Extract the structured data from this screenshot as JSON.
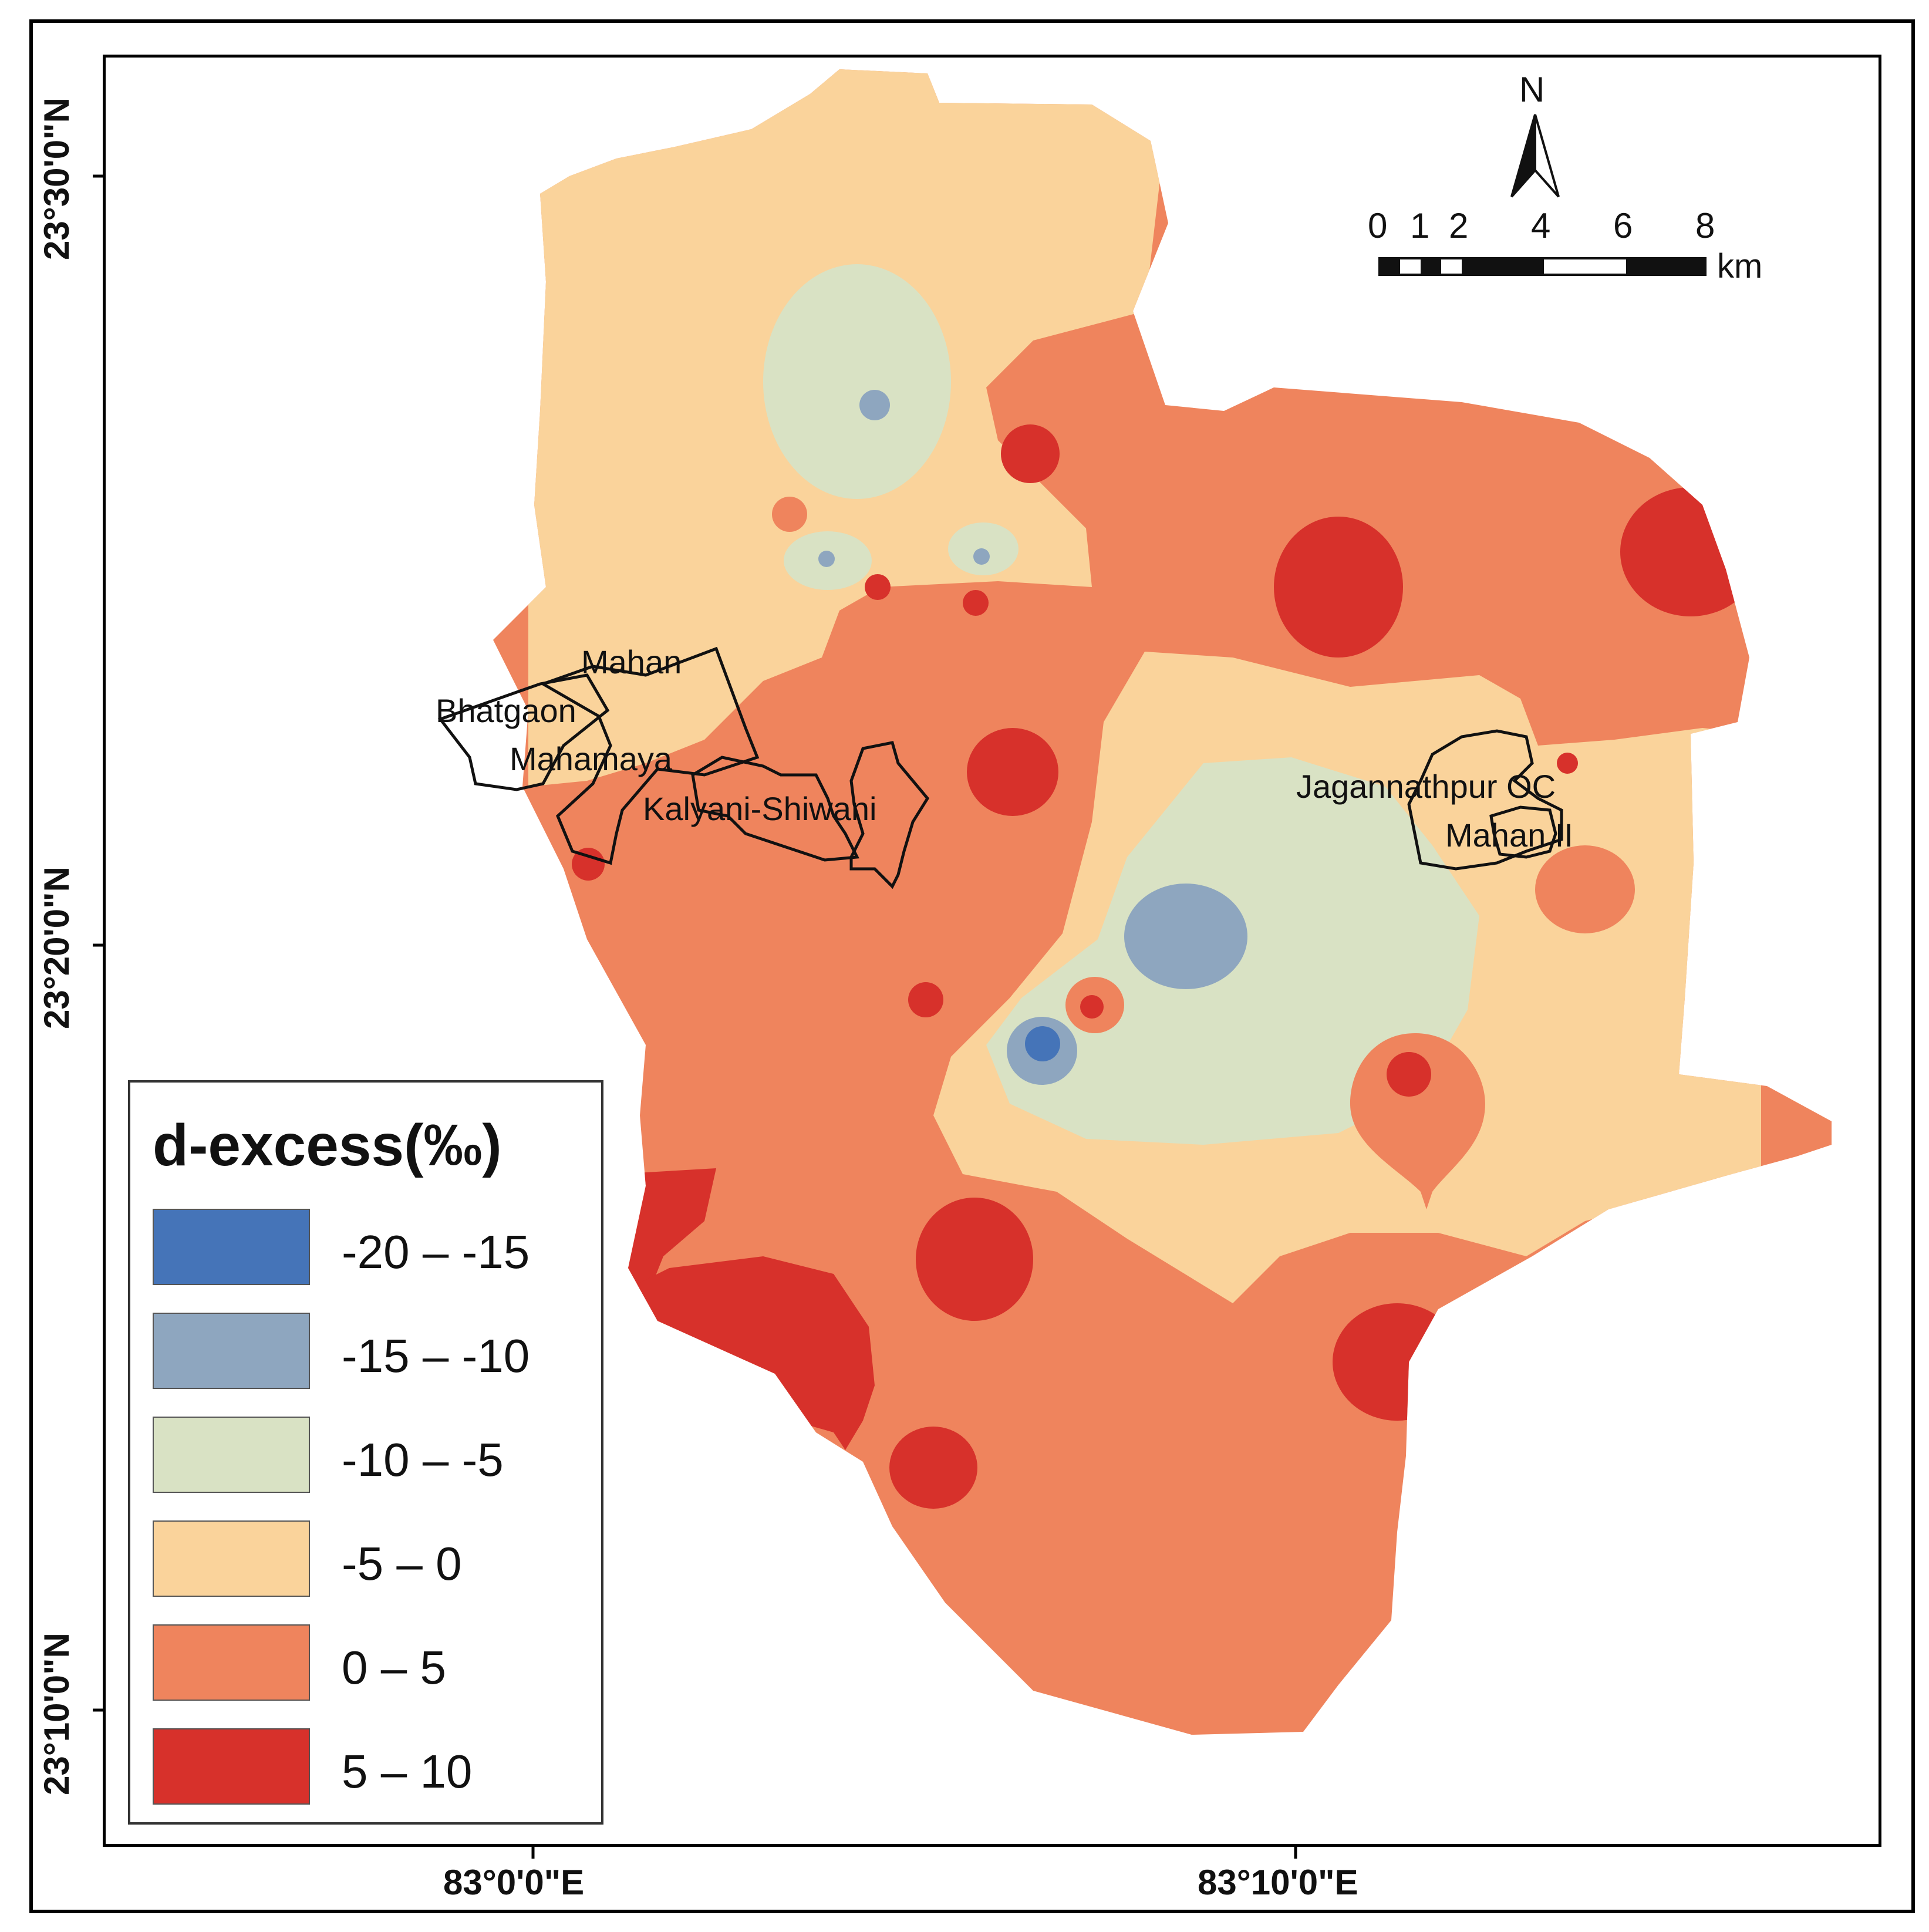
{
  "legend": {
    "title": "d-excess(‰)",
    "classes": [
      {
        "label": "-20 – -15",
        "color": "#4574b8"
      },
      {
        "label": "-15 – -10",
        "color": "#8ea6bf"
      },
      {
        "label": "-10 – -5",
        "color": "#d9e2c4"
      },
      {
        "label": "-5 – 0",
        "color": "#fad39b"
      },
      {
        "label": "0 – 5",
        "color": "#ef845d"
      },
      {
        "label": "5 – 10",
        "color": "#d7312b"
      }
    ]
  },
  "axes": {
    "lat_ticks": [
      "23°30'0\"N",
      "23°20'0\"N",
      "23°10'0\"N"
    ],
    "lon_ticks": [
      "83°0'0\"E",
      "83°10'0\"E"
    ]
  },
  "mine_labels": {
    "mahan": "Mahan",
    "bhatgaon": "Bhatgaon",
    "mahamaya": "Mahamaya",
    "kalyani": "Kalyani-Shiwani",
    "jagannathpur": "Jagannathpur OC",
    "mahan2": "Mahan II"
  },
  "north_arrow": {
    "label": "N"
  },
  "scale_bar": {
    "ticks": [
      "0",
      "1",
      "2",
      "4",
      "6",
      "8"
    ],
    "unit": "km"
  }
}
